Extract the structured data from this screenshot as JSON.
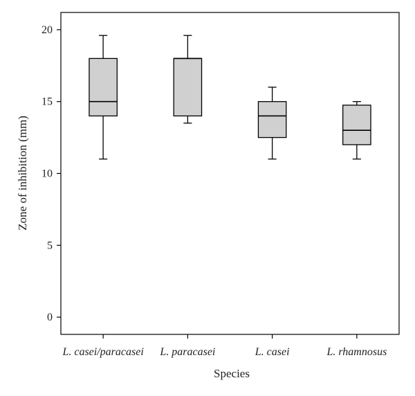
{
  "chart_data": {
    "type": "box",
    "xlabel": "Species",
    "ylabel": "Zone of inhibition (mm)",
    "ylim": [
      -1.2,
      21.2
    ],
    "yticks": [
      0,
      5,
      10,
      15,
      20
    ],
    "categories": [
      "L. casei/paracasei",
      "L. paracasei",
      "L. casei",
      "L. rhamnosus"
    ],
    "boxes": [
      {
        "category": "L. casei/paracasei",
        "min": 11,
        "q1": 14,
        "median": 15,
        "q3": 18,
        "max": 19.6
      },
      {
        "category": "L. paracasei",
        "min": 13.5,
        "q1": 14,
        "median": 18,
        "q3": 18,
        "max": 19.6
      },
      {
        "category": "L. casei",
        "min": 11,
        "q1": 12.5,
        "median": 14,
        "q3": 15,
        "max": 16
      },
      {
        "category": "L. rhamnosus",
        "min": 11,
        "q1": 12,
        "median": 13,
        "q3": 14.75,
        "max": 15
      }
    ],
    "grid": false,
    "legend": "none",
    "box_fill": "#d0d0d0",
    "line_color": "#000000"
  }
}
